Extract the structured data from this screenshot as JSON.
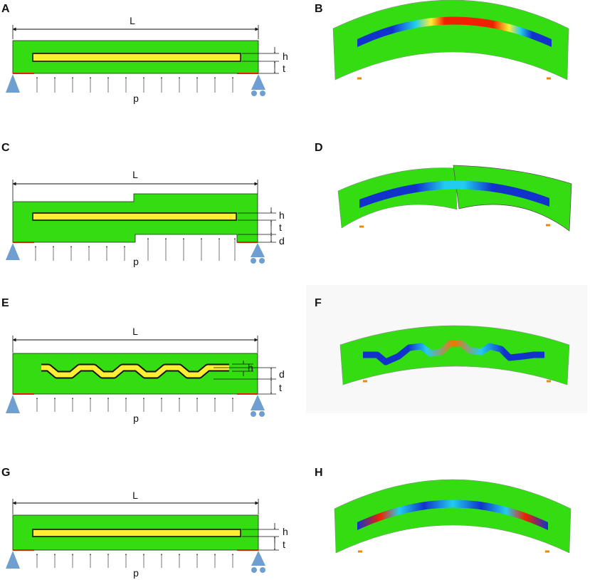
{
  "panels": {
    "A": {
      "letter": "A",
      "length_label": "L",
      "h_label": "h",
      "t_label": "t",
      "p_label": "p"
    },
    "B": {
      "letter": "B"
    },
    "C": {
      "letter": "C",
      "length_label": "L",
      "h_label": "h",
      "t_label": "t",
      "d_label": "d",
      "p_label": "p"
    },
    "D": {
      "letter": "D"
    },
    "E": {
      "letter": "E",
      "length_label": "L",
      "h_label": "h",
      "t_label": "t",
      "d_label": "d",
      "p_label": "p"
    },
    "F": {
      "letter": "F"
    },
    "G": {
      "letter": "G",
      "length_label": "L",
      "h_label": "h",
      "t_label": "t",
      "p_label": "p"
    },
    "H": {
      "letter": "H"
    }
  },
  "colors": {
    "matrix_green": "#33dd11",
    "inclusion_yellow": "#ffee33",
    "contact_red": "#dd2200",
    "support_blue": "#6f9fd0",
    "strain_blue": "#1133cc",
    "strain_cyan": "#22ccee",
    "strain_red": "#ee2200"
  }
}
